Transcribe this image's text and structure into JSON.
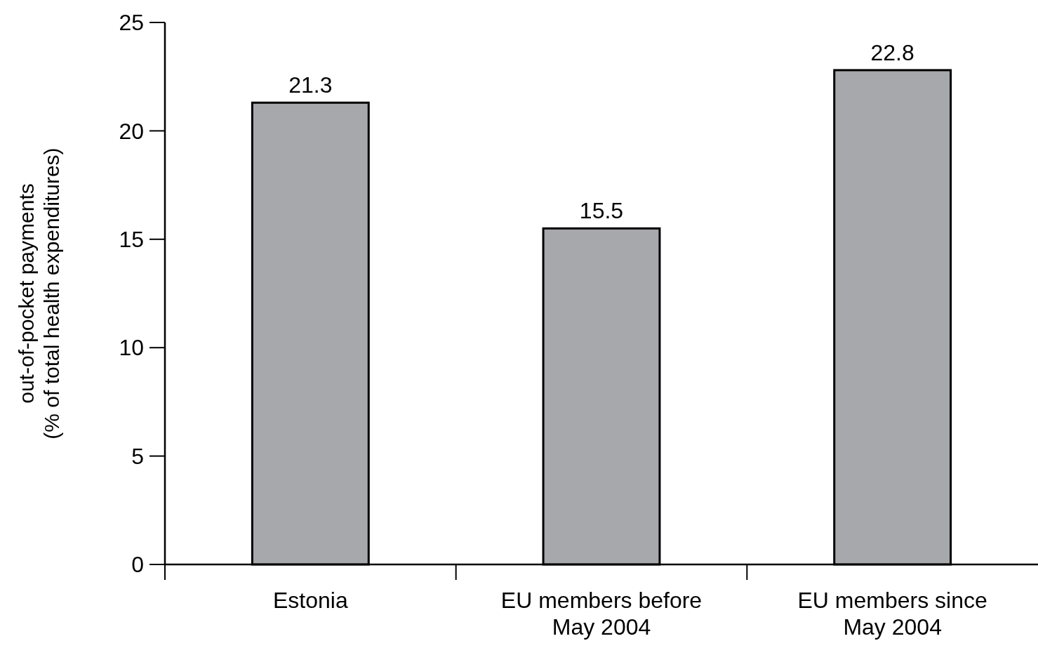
{
  "chart_data": {
    "type": "bar",
    "ylabel": "out-of-pocket payments\n(% of total health expenditures)",
    "categories": [
      "Estonia",
      "EU members before May 2004",
      "EU members since May 2004"
    ],
    "values": [
      21.3,
      15.5,
      22.8
    ],
    "color": "#a7a8ac",
    "ylim": [
      0,
      25
    ],
    "yticks": [
      0,
      5,
      10,
      15,
      20,
      25
    ],
    "data_labels": true,
    "grid": false
  }
}
